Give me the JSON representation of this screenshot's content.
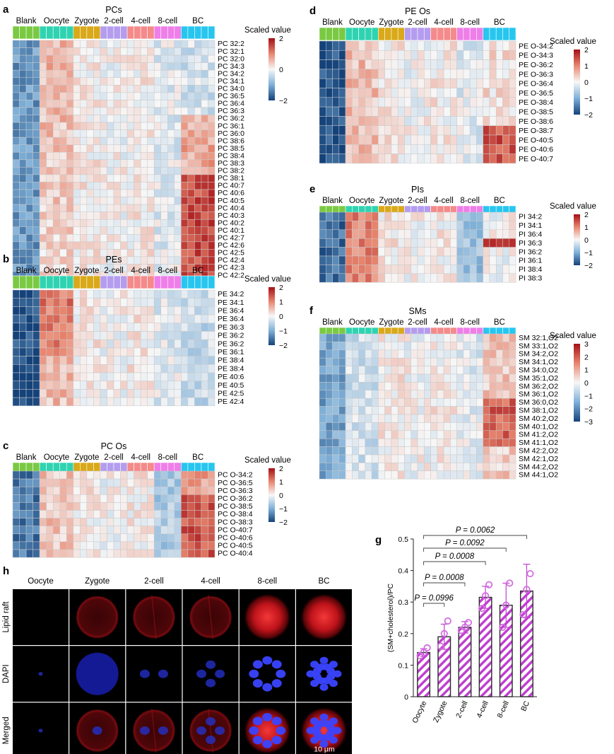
{
  "figure": {
    "groups": [
      {
        "name": "Blank",
        "color": "#7ac943"
      },
      {
        "name": "Oocyte",
        "color": "#2fd3b1"
      },
      {
        "name": "Zygote",
        "color": "#d9a91a"
      },
      {
        "name": "2-cell",
        "color": "#b49cef"
      },
      {
        "name": "4-cell",
        "color": "#f48a8a"
      },
      {
        "name": "8-cell",
        "color": "#ee7ee8"
      },
      {
        "name": "BC",
        "color": "#27c6ef"
      }
    ],
    "legend_title": "Scaled value",
    "heatmaps": [
      {
        "panel": "a",
        "title": "PCs",
        "legend_ticks": [
          "2",
          "0",
          "−2"
        ],
        "rows": [
          "PC 32:2",
          "PC 32:1",
          "PC 32:0",
          "PC 34:3",
          "PC 34:2",
          "PC 34:1",
          "PC 34:0",
          "PC 36:5",
          "PC 36:4",
          "PC 36:3",
          "PC 36:2",
          "PC 36:1",
          "PC 36:0",
          "PC 38:6",
          "PC 38:5",
          "PC 38:4",
          "PC 38:3",
          "PC 38:2",
          "PC 38:1",
          "PC 40:7",
          "PC 40:6",
          "PC 40:5",
          "PC 40:4",
          "PC 40:3",
          "PC 40:2",
          "PC 40:1",
          "PC 42:7",
          "PC 42:6",
          "PC 42:5",
          "PC 42:4",
          "PC 42:3",
          "PC 42:2"
        ]
      },
      {
        "panel": "b",
        "title": "PEs",
        "legend_ticks": [
          "2",
          "1",
          "0",
          "−1",
          "−2"
        ],
        "rows": [
          "PE 34:2",
          "PE 34:1",
          "PE 36:4",
          "PE 36:4",
          "PE 36:3",
          "PE 36:2",
          "PE 36:2",
          "PE 36:1",
          "PE 38:4",
          "PE 38:4",
          "PE 40:6",
          "PE 40:5",
          "PE 42:5",
          "PE 42:4"
        ]
      },
      {
        "panel": "c",
        "title": "PC Os",
        "legend_ticks": [
          "2",
          "1",
          "0",
          "−1",
          "−2"
        ],
        "rows": [
          "PC O-34:2",
          "PC O-36:5",
          "PC O-36:3",
          "PC O-36:2",
          "PC O-38:5",
          "PC O-38:4",
          "PC O-38:3",
          "PC O-40:7",
          "PC O-40:6",
          "PC O-40:5",
          "PC O-40:4"
        ]
      },
      {
        "panel": "d",
        "title": "PE Os",
        "legend_ticks": [
          "2",
          "1",
          "0",
          "−1",
          "−2"
        ],
        "rows": [
          "PE O-34:2",
          "PE O-34:3",
          "PE O-36:2",
          "PE O-36:3",
          "PE O-36:4",
          "PE O-36:5",
          "PE O-38:4",
          "PE O-38:5",
          "PE O-38:6",
          "PE O-38:7",
          "PE O-40:5",
          "PE O-40:6",
          "PE O-40:7"
        ]
      },
      {
        "panel": "e",
        "title": "PIs",
        "legend_ticks": [
          "2",
          "1",
          "0",
          "−1",
          "−2"
        ],
        "rows": [
          "PI 34:2",
          "PI 34:1",
          "PI 36:4",
          "PI 36:3",
          "PI 36:2",
          "PI 36:1",
          "PI 38:4",
          "PI 38:3"
        ]
      },
      {
        "panel": "f",
        "title": "SMs",
        "legend_ticks": [
          "3",
          "2",
          "1",
          "0",
          "−1",
          "−2",
          "−3"
        ],
        "rows": [
          "SM 32:1,O2",
          "SM 33:1,O2",
          "SM 34:2,O2",
          "SM 34:1,O2",
          "SM 34:0,O2",
          "SM 35:1,O2",
          "SM 36:2,O2",
          "SM 36:1,O2",
          "SM 36:0,O2",
          "SM 38:1,O2",
          "SM 40:2,O2",
          "SM 40:1,O2",
          "SM 41:2,O2",
          "SM 41:1,O2",
          "SM 42:2,O2",
          "SM 42:1,O2",
          "SM 44:2,O2",
          "SM 44:1,O2"
        ]
      }
    ],
    "microscopy": {
      "panel": "h",
      "columns": [
        "Oocyte",
        "Zygote",
        "2-cell",
        "4-cell",
        "8-cell",
        "BC"
      ],
      "rows": [
        "Lipid raft",
        "DAPI",
        "Merged"
      ],
      "scale_bar": "10 μm"
    }
  },
  "chart_data": {
    "panel": "g",
    "type": "bar",
    "title": "",
    "xlabel": "",
    "ylabel": "(SM+cholesterol)/PC",
    "categories": [
      "Oocyte",
      "Zygote",
      "2-cell",
      "4-cell",
      "8-cell",
      "BC"
    ],
    "values": [
      0.14,
      0.19,
      0.22,
      0.315,
      0.29,
      0.335
    ],
    "errors": [
      0.012,
      0.04,
      0.018,
      0.035,
      0.07,
      0.085
    ],
    "points": [
      [
        0.13,
        0.14,
        0.155
      ],
      [
        0.16,
        0.2,
        0.24
      ],
      [
        0.21,
        0.22,
        0.235
      ],
      [
        0.28,
        0.32,
        0.355
      ],
      [
        0.22,
        0.29,
        0.36
      ],
      [
        0.26,
        0.34,
        0.39
      ]
    ],
    "ylim": [
      0,
      0.5
    ],
    "yticks": [
      "0",
      "0.1",
      "0.2",
      "0.3",
      "0.4",
      "0.5"
    ],
    "comparisons": [
      {
        "label": "P = 0.0996",
        "from": 0,
        "to": 1
      },
      {
        "label": "P = 0.0008",
        "from": 0,
        "to": 2
      },
      {
        "label": "P = 0.0008",
        "from": 0,
        "to": 3
      },
      {
        "label": "P = 0.0092",
        "from": 0,
        "to": 4
      },
      {
        "label": "P = 0.0062",
        "from": 0,
        "to": 5
      }
    ],
    "bar_color": "#c13fd0",
    "grid": false
  }
}
